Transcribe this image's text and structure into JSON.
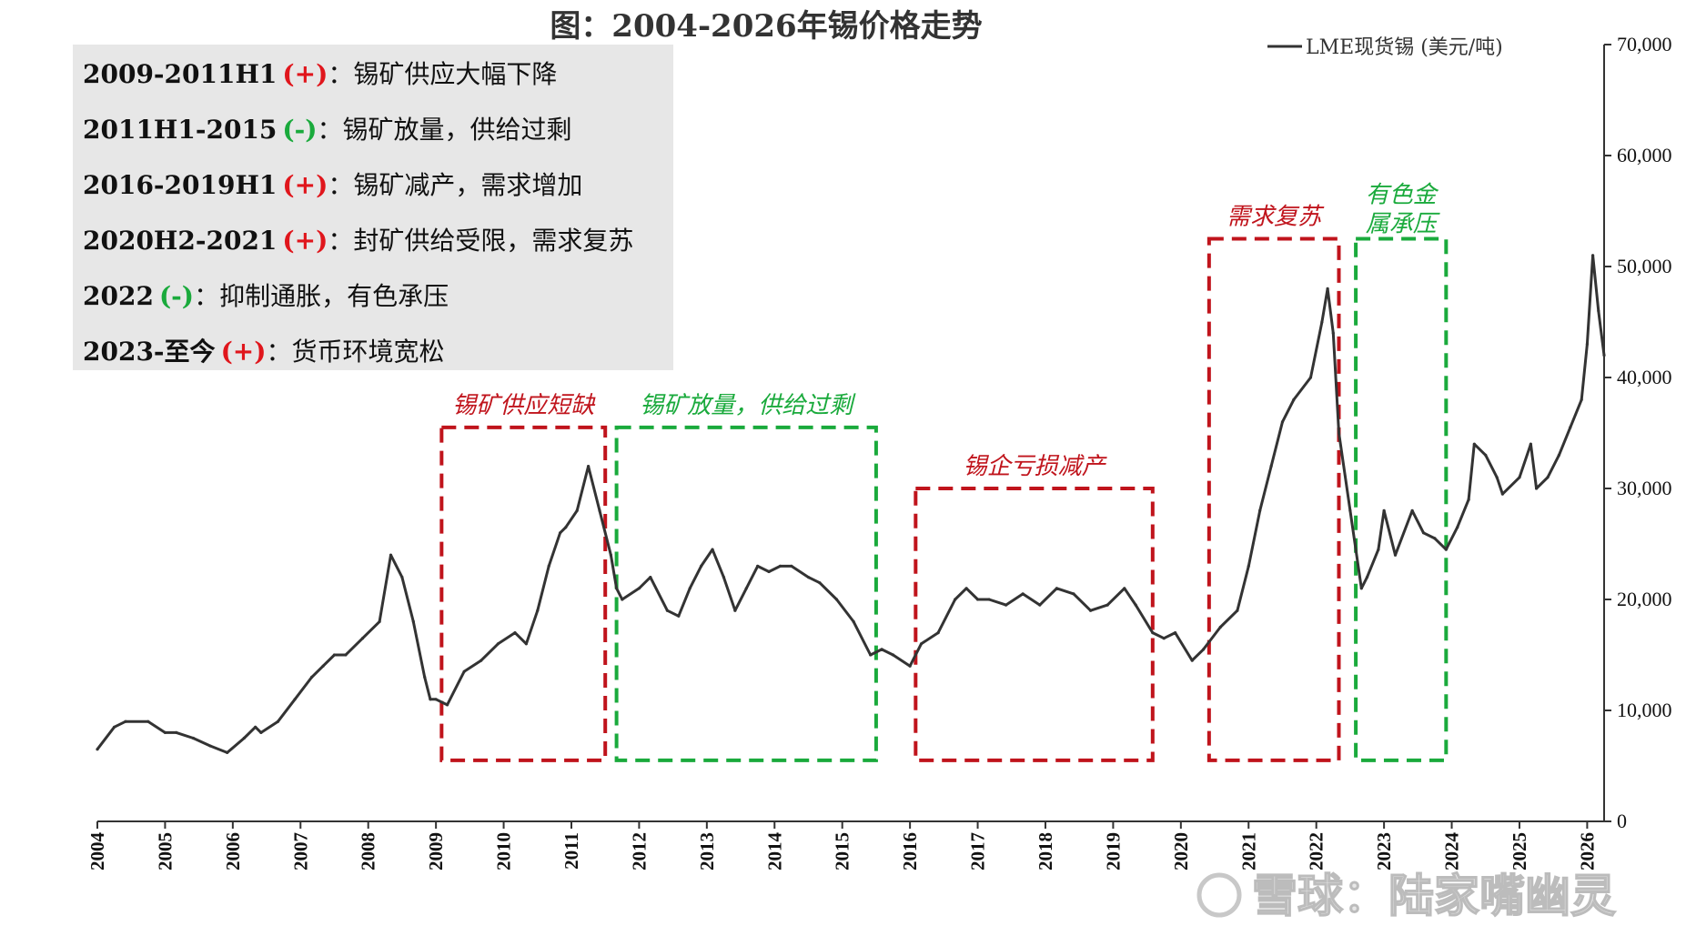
{
  "chart_data": {
    "type": "line",
    "title": "图：2004-2026年锡价格走势",
    "legend": {
      "position": "top-right",
      "entries": [
        "LME现货锡 (美元/吨)"
      ]
    },
    "ylim": [
      0,
      70000
    ],
    "y_axis_position": "right",
    "y_ticks": [
      "0",
      "10,000",
      "20,000",
      "30,000",
      "40,000",
      "50,000",
      "60,000",
      "70,000"
    ],
    "x_ticks": [
      "2004",
      "2005",
      "2006",
      "2007",
      "2008",
      "2009",
      "2010",
      "2011",
      "2012",
      "2013",
      "2014",
      "2015",
      "2016",
      "2017",
      "2018",
      "2019",
      "2020",
      "2021",
      "2022",
      "2023",
      "2024",
      "2025",
      "2026"
    ],
    "xlim": [
      "2004-01",
      "2026-04"
    ],
    "grid": false,
    "series": [
      {
        "name": "LME现货锡 (美元/吨)",
        "color": "#333333",
        "x": [
          "2004-01",
          "2004-04",
          "2004-06",
          "2004-10",
          "2005-01",
          "2005-03",
          "2005-06",
          "2005-09",
          "2005-12",
          "2006-03",
          "2006-05",
          "2006-06",
          "2006-09",
          "2006-12",
          "2007-03",
          "2007-05",
          "2007-07",
          "2007-09",
          "2007-12",
          "2008-03",
          "2008-05",
          "2008-07",
          "2008-09",
          "2008-11",
          "2008-12",
          "2009-01",
          "2009-03",
          "2009-06",
          "2009-09",
          "2009-12",
          "2010-03",
          "2010-05",
          "2010-07",
          "2010-09",
          "2010-11",
          "2010-12",
          "2011-02",
          "2011-04",
          "2011-06",
          "2011-08",
          "2011-09",
          "2011-10",
          "2012-01",
          "2012-03",
          "2012-06",
          "2012-08",
          "2012-10",
          "2012-12",
          "2013-02",
          "2013-04",
          "2013-06",
          "2013-08",
          "2013-10",
          "2013-12",
          "2014-02",
          "2014-04",
          "2014-07",
          "2014-09",
          "2014-12",
          "2015-03",
          "2015-06",
          "2015-08",
          "2015-10",
          "2016-01",
          "2016-03",
          "2016-06",
          "2016-09",
          "2016-11",
          "2017-01",
          "2017-03",
          "2017-06",
          "2017-09",
          "2017-12",
          "2018-03",
          "2018-06",
          "2018-09",
          "2018-12",
          "2019-03",
          "2019-05",
          "2019-08",
          "2019-10",
          "2019-12",
          "2020-03",
          "2020-05",
          "2020-08",
          "2020-11",
          "2021-01",
          "2021-03",
          "2021-05",
          "2021-07",
          "2021-09",
          "2021-12",
          "2022-02",
          "2022-03",
          "2022-04",
          "2022-05",
          "2022-07",
          "2022-09",
          "2022-10",
          "2022-12",
          "2023-01",
          "2023-03",
          "2023-06",
          "2023-08",
          "2023-10",
          "2023-12",
          "2024-02",
          "2024-04",
          "2024-05",
          "2024-07",
          "2024-09",
          "2024-10",
          "2025-01",
          "2025-03",
          "2025-04",
          "2025-06",
          "2025-08",
          "2025-10",
          "2025-12",
          "2026-01",
          "2026-02",
          "2026-03",
          "2026-04"
        ],
        "values": [
          6500,
          8500,
          9000,
          9000,
          8000,
          8000,
          7500,
          6800,
          6200,
          7500,
          8500,
          8000,
          9000,
          11000,
          13000,
          14000,
          15000,
          15000,
          16500,
          18000,
          24000,
          22000,
          18000,
          13000,
          11000,
          11000,
          10500,
          13500,
          14500,
          16000,
          17000,
          16000,
          19000,
          23000,
          26000,
          26500,
          28000,
          32000,
          28000,
          24000,
          21000,
          20000,
          21000,
          22000,
          19000,
          18500,
          21000,
          23000,
          24500,
          22000,
          19000,
          21000,
          23000,
          22500,
          23000,
          23000,
          22000,
          21500,
          20000,
          18000,
          15000,
          15500,
          15000,
          14000,
          16000,
          17000,
          20000,
          21000,
          20000,
          20000,
          19500,
          20500,
          19500,
          21000,
          20500,
          19000,
          19500,
          21000,
          19500,
          17000,
          16500,
          17000,
          14500,
          15500,
          17500,
          19000,
          23000,
          28000,
          32000,
          36000,
          38000,
          40000,
          45000,
          48000,
          44000,
          35000,
          28000,
          21000,
          22000,
          24500,
          28000,
          24000,
          28000,
          26000,
          25500,
          24500,
          26500,
          29000,
          34000,
          33000,
          31000,
          29500,
          31000,
          34000,
          30000,
          31000,
          33000,
          35500,
          38000,
          43000,
          51000,
          46000,
          42000
        ]
      }
    ],
    "boxes": [
      {
        "label": "锡矿供应短缺",
        "color": "#c0141c",
        "x_range": [
          "2009-02",
          "2011-07"
        ],
        "y_range": [
          5500,
          35500
        ]
      },
      {
        "label": "锡矿放量，供给过剩",
        "color": "#1aaa3c",
        "x_range": [
          "2011-09",
          "2015-07"
        ],
        "y_range": [
          5500,
          35500
        ]
      },
      {
        "label": "锡企亏损减产",
        "color": "#c0141c",
        "x_range": [
          "2016-02",
          "2019-08"
        ],
        "y_range": [
          5500,
          30000
        ]
      },
      {
        "label": "需求复苏",
        "color": "#c0141c",
        "x_range": [
          "2020-06",
          "2022-05"
        ],
        "y_range": [
          5500,
          52500
        ]
      },
      {
        "label": "有色金属承压",
        "color": "#1aaa3c",
        "x_range": [
          "2022-08",
          "2023-12"
        ],
        "y_range": [
          5500,
          52500
        ]
      }
    ]
  },
  "notes_box": {
    "items": [
      {
        "period": "2009-2011H1",
        "sign": "(+)",
        "sign_color": "#e0161c",
        "desc": "：锡矿供应大幅下降"
      },
      {
        "period": "2011H1-2015",
        "sign": "(-)",
        "sign_color": "#1aaa3c",
        "desc": "：锡矿放量，供给过剩"
      },
      {
        "period": "2016-2019H1",
        "sign": "(+)",
        "sign_color": "#e0161c",
        "desc": "：锡矿减产，需求增加"
      },
      {
        "period": "2020H2-2021",
        "sign": "(+)",
        "sign_color": "#e0161c",
        "desc": "：封矿供给受限，需求复苏"
      },
      {
        "period": "2022",
        "sign": "(-)",
        "sign_color": "#1aaa3c",
        "desc": "：抑制通胀，有色承压"
      },
      {
        "period": "2023-至今",
        "sign": "(+)",
        "sign_color": "#e0161c",
        "desc": "：货币环境宽松"
      }
    ]
  },
  "watermark": {
    "text": "雪球：陆家嘴幽灵"
  }
}
